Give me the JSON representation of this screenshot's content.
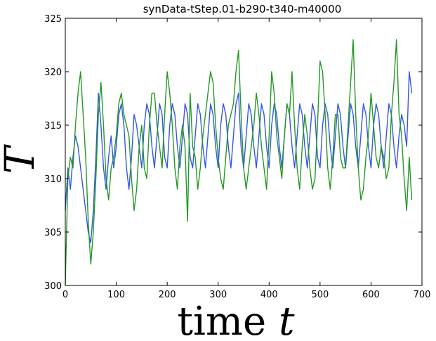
{
  "chart_data": {
    "type": "line",
    "title": "synData-tStep.01-b290-t340-m40000",
    "xlabel": "time",
    "xlabel_var": "t",
    "ylabel": "T",
    "xlim": [
      0,
      700
    ],
    "ylim": [
      300,
      325
    ],
    "x_ticks": [
      "0",
      "100",
      "200",
      "300",
      "400",
      "500",
      "600",
      "700"
    ],
    "y_ticks": [
      "300",
      "305",
      "310",
      "315",
      "320",
      "325"
    ],
    "grid": false,
    "colors": {
      "blue": "#3355ee",
      "green": "#229922"
    },
    "series": [
      {
        "color": "blue",
        "x": [
          0,
          5,
          10,
          15,
          20,
          25,
          30,
          35,
          40,
          45,
          50,
          55,
          60,
          65,
          70,
          75,
          80,
          85,
          90,
          95,
          100,
          105,
          110,
          115,
          120,
          125,
          130,
          135,
          140,
          145,
          150,
          155,
          160,
          165,
          170,
          175,
          180,
          185,
          190,
          195,
          200,
          205,
          210,
          215,
          220,
          225,
          230,
          235,
          240,
          245,
          250,
          255,
          260,
          265,
          270,
          275,
          280,
          285,
          290,
          295,
          300,
          305,
          310,
          315,
          320,
          325,
          330,
          335,
          340,
          345,
          350,
          355,
          360,
          365,
          370,
          375,
          380,
          385,
          390,
          395,
          400,
          405,
          410,
          415,
          420,
          425,
          430,
          435,
          440,
          445,
          450,
          455,
          460,
          465,
          470,
          475,
          480,
          485,
          490,
          495,
          500,
          505,
          510,
          515,
          520,
          525,
          530,
          535,
          540,
          545,
          550,
          555,
          560,
          565,
          570,
          575,
          580,
          585,
          590,
          595,
          600,
          605,
          610,
          615,
          620,
          625,
          630,
          635,
          640,
          645,
          650,
          655,
          660,
          665,
          670,
          675,
          680
        ],
        "y": [
          307,
          311,
          309,
          312,
          314,
          313,
          311,
          309,
          307,
          305,
          304,
          307,
          312,
          318,
          315,
          311,
          309,
          312,
          314,
          311,
          313,
          316,
          317,
          315,
          311,
          309,
          312,
          316,
          315,
          313,
          311,
          315,
          317,
          316,
          313,
          311,
          314,
          317,
          316,
          312,
          311,
          315,
          317,
          316,
          313,
          311,
          314,
          317,
          316,
          312,
          311,
          314,
          317,
          316,
          313,
          311,
          314,
          317,
          316,
          313,
          311,
          315,
          317,
          316,
          313,
          311,
          314,
          317,
          318,
          313,
          311,
          314,
          317,
          316,
          313,
          311,
          314,
          317,
          316,
          313,
          311,
          315,
          317,
          316,
          313,
          311,
          314,
          317,
          316,
          313,
          311,
          314,
          317,
          316,
          313,
          311,
          314,
          317,
          316,
          312,
          311,
          315,
          317,
          316,
          313,
          311,
          314,
          317,
          316,
          313,
          311,
          314,
          317,
          316,
          313,
          311,
          314,
          317,
          316,
          313,
          311,
          315,
          317,
          316,
          313,
          311,
          314,
          317,
          316,
          313,
          311,
          314,
          316,
          315,
          313,
          320,
          318
        ]
      },
      {
        "color": "green",
        "x": [
          0,
          5,
          10,
          15,
          20,
          25,
          30,
          35,
          40,
          45,
          50,
          55,
          60,
          65,
          70,
          75,
          80,
          85,
          90,
          95,
          100,
          105,
          110,
          115,
          120,
          125,
          130,
          135,
          140,
          145,
          150,
          155,
          160,
          165,
          170,
          175,
          180,
          185,
          190,
          195,
          200,
          205,
          210,
          215,
          220,
          225,
          230,
          235,
          240,
          245,
          250,
          255,
          260,
          265,
          270,
          275,
          280,
          285,
          290,
          295,
          300,
          305,
          310,
          315,
          320,
          325,
          330,
          335,
          340,
          345,
          350,
          355,
          360,
          365,
          370,
          375,
          380,
          385,
          390,
          395,
          400,
          405,
          410,
          415,
          420,
          425,
          430,
          435,
          440,
          445,
          450,
          455,
          460,
          465,
          470,
          475,
          480,
          485,
          490,
          495,
          500,
          505,
          510,
          515,
          520,
          525,
          530,
          535,
          540,
          545,
          550,
          555,
          560,
          565,
          570,
          575,
          580,
          585,
          590,
          595,
          600,
          605,
          610,
          615,
          620,
          625,
          630,
          635,
          640,
          645,
          650,
          655,
          660,
          665,
          670,
          675,
          680
        ],
        "y": [
          300,
          310,
          312,
          311,
          315,
          318,
          320,
          316,
          312,
          306,
          302,
          305,
          310,
          316,
          319,
          315,
          310,
          308,
          311,
          312,
          314,
          317,
          318,
          316,
          315,
          314,
          310,
          307,
          309,
          313,
          315,
          311,
          310,
          315,
          318,
          318,
          315,
          313,
          311,
          316,
          320,
          318,
          315,
          311,
          309,
          313,
          315,
          313,
          306,
          318,
          313,
          312,
          309,
          311,
          314,
          316,
          318,
          320,
          319,
          315,
          312,
          310,
          309,
          312,
          315,
          316,
          317,
          320,
          322,
          316,
          311,
          309,
          311,
          313,
          315,
          318,
          316,
          313,
          311,
          309,
          314,
          320,
          318,
          314,
          312,
          310,
          314,
          317,
          316,
          320,
          315,
          311,
          309,
          313,
          316,
          314,
          311,
          309,
          310,
          315,
          321,
          320,
          316,
          311,
          309,
          312,
          316,
          316,
          312,
          311,
          311,
          315,
          319,
          323,
          316,
          311,
          308,
          309,
          312,
          314,
          318,
          315,
          312,
          311,
          313,
          312,
          310,
          311,
          316,
          319,
          323,
          316,
          314,
          310,
          307,
          312,
          308
        ]
      }
    ]
  }
}
